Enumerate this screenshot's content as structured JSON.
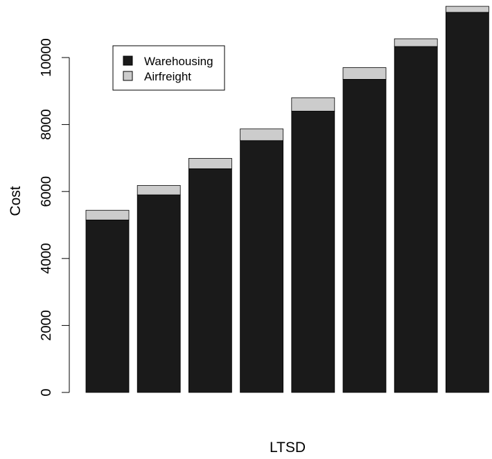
{
  "chart_data": {
    "type": "bar",
    "stacked": true,
    "title": "",
    "xlabel": "LTSD",
    "ylabel": "Cost",
    "ylim": [
      0,
      11600
    ],
    "yticks": [
      0,
      2000,
      4000,
      6000,
      8000,
      10000
    ],
    "categories": [
      "",
      "",
      "",
      "",
      "",
      "",
      "",
      ""
    ],
    "series": [
      {
        "name": "Warehousing",
        "color": "#1a1a1a",
        "values": [
          5150,
          5900,
          6680,
          7520,
          8400,
          9350,
          10330,
          11350
        ]
      },
      {
        "name": "Airfreight",
        "color": "#cccccc",
        "values": [
          290,
          280,
          310,
          350,
          400,
          350,
          230,
          180
        ]
      }
    ],
    "legend": {
      "position": "top-left"
    },
    "grid": false
  }
}
